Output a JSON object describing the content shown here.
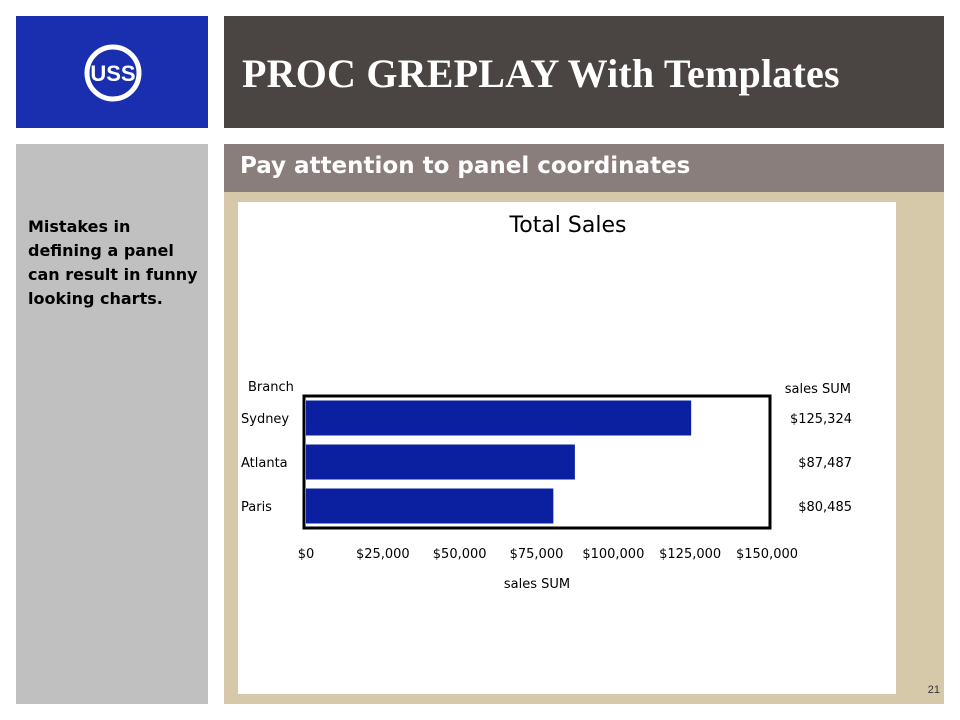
{
  "logo": {
    "label": "USS",
    "icon": "uss-logo-icon",
    "background": "#1a2fb0"
  },
  "header": {
    "title": "PROC GREPLAY With Templates",
    "background": "#4a4442"
  },
  "subtitle": {
    "text": "Pay attention to panel coordinates",
    "background": "#8a7e7c"
  },
  "sidebar": {
    "text": "Mistakes in defining a panel can result in funny looking charts.",
    "background": "#c0c0c0"
  },
  "content": {
    "background": "#d6c9aa"
  },
  "page_number": "21",
  "chart_data": {
    "type": "bar",
    "orientation": "horizontal",
    "title": "Total Sales",
    "category_label": "Branch",
    "value_column_label": "sales SUM",
    "xlabel": "sales SUM",
    "categories": [
      "Sydney",
      "Atlanta",
      "Paris"
    ],
    "values": [
      125324,
      87487,
      80485
    ],
    "value_labels": [
      "$125,324",
      "$87,487",
      "$80,485"
    ],
    "xlim": [
      0,
      150000
    ],
    "ticks": [
      0,
      25000,
      50000,
      75000,
      100000,
      125000,
      150000
    ],
    "tick_labels": [
      "$0",
      "$25,000",
      "$50,000",
      "$75,000",
      "$100,000",
      "$125,000",
      "$150,000"
    ],
    "bar_color": "#0a20a0",
    "grid": false
  }
}
